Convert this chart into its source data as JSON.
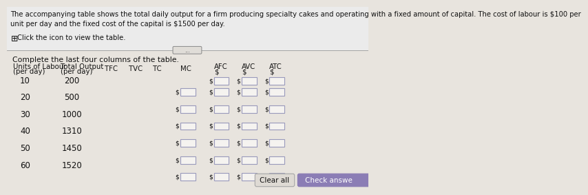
{
  "title_text": "The accompanying table shows the total daily output for a firm producing specialty cakes and operating with a fixed amount of capital. The cost of labour is $100 per\nunit per day and the fixed cost of the capital is $1500 per day.",
  "icon_text": "    Click the icon to view the table.",
  "instruction": "Complete the last four columns of the table.",
  "rows": [
    [
      10,
      200
    ],
    [
      20,
      500
    ],
    [
      30,
      1000
    ],
    [
      40,
      1310
    ],
    [
      50,
      1450
    ],
    [
      60,
      1520
    ]
  ],
  "bg_color": "#e8e4de",
  "panel_color": "#eae6e0",
  "box_facecolor": "#f5f3f0",
  "box_edgecolor": "#9999bb",
  "text_color": "#111111",
  "button_clear_bg": "#dedad4",
  "button_check_bg": "#8b7db5",
  "button_text_clear": "Clear all",
  "button_text_check": "Check answe",
  "divider_color": "#999999",
  "title_fontsize": 7.2,
  "header_fontsize": 7.8,
  "data_fontsize": 8.5,
  "dollar_fontsize": 6.5
}
